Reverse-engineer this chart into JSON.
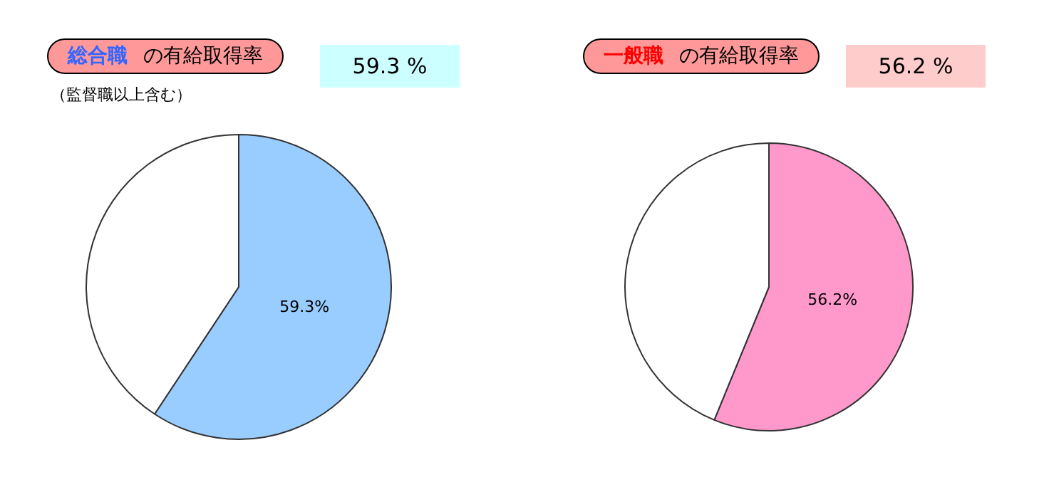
{
  "chart_data": [
    {
      "type": "pie",
      "title": "総合職 の有給取得率",
      "subtitle": "（監督職以上含む）",
      "annotations": [
        "59.3 %"
      ],
      "categories": [
        null,
        null
      ],
      "values": [
        59.3,
        40.7
      ],
      "colors": [
        "#99ccff",
        "#ffffff"
      ],
      "value_labels": [
        "59.3%",
        null
      ]
    },
    {
      "type": "pie",
      "title": "一般職 の有給取得率",
      "annotations": [
        "56.2 %"
      ],
      "categories": [
        null,
        null
      ],
      "values": [
        56.2,
        43.8
      ],
      "colors": [
        "#ff99cc",
        "#ffffff"
      ],
      "value_labels": [
        "56.2%",
        null
      ]
    }
  ]
}
